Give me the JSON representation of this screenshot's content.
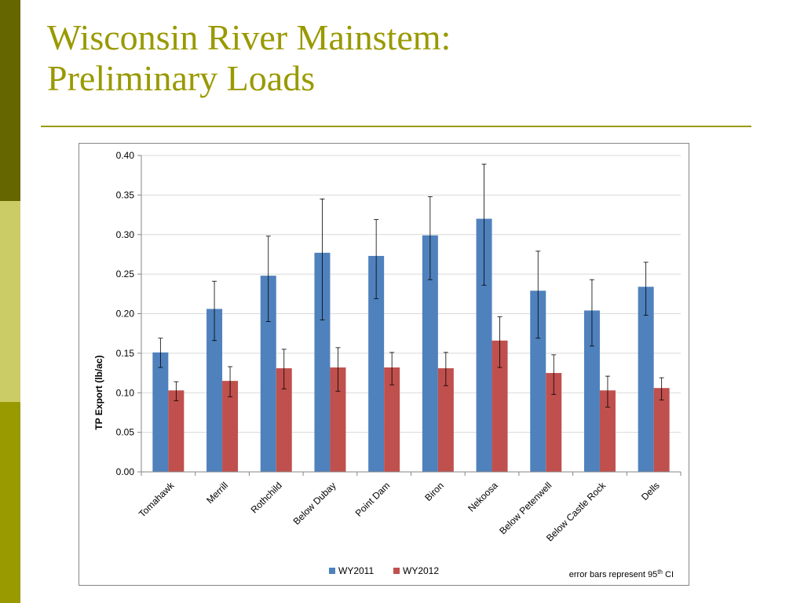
{
  "slide": {
    "title_line1": "Wisconsin River Mainstem:",
    "title_line2": "Preliminary Loads"
  },
  "colors": {
    "accent": "#999900",
    "series_wy2011": "#4f81bd",
    "series_wy2012": "#c0504d"
  },
  "chart_data": {
    "type": "bar",
    "title": "",
    "xlabel": "",
    "ylabel": "TP Export (lb/ac)",
    "ylim": [
      0,
      0.4
    ],
    "yticks": [
      "0.00",
      "0.05",
      "0.10",
      "0.15",
      "0.20",
      "0.25",
      "0.30",
      "0.35",
      "0.40"
    ],
    "grid": true,
    "legend_position": "bottom",
    "categories": [
      "Tomahawk",
      "Merrill",
      "Rothchild",
      "Below Dubay",
      "Point Dam",
      "Biron",
      "Nekoosa",
      "Below Petenwell",
      "Below Castle Rock",
      "Dells"
    ],
    "series": [
      {
        "name": "WY2011",
        "values": [
          0.151,
          0.206,
          0.248,
          0.277,
          0.273,
          0.299,
          0.32,
          0.229,
          0.204,
          0.234
        ],
        "ci_low": [
          0.132,
          0.166,
          0.19,
          0.192,
          0.219,
          0.243,
          0.236,
          0.169,
          0.159,
          0.198
        ],
        "ci_high": [
          0.169,
          0.241,
          0.298,
          0.345,
          0.319,
          0.348,
          0.389,
          0.279,
          0.243,
          0.265
        ]
      },
      {
        "name": "WY2012",
        "values": [
          0.103,
          0.115,
          0.131,
          0.132,
          0.132,
          0.131,
          0.166,
          0.125,
          0.103,
          0.106
        ],
        "ci_low": [
          0.09,
          0.095,
          0.105,
          0.102,
          0.11,
          0.109,
          0.132,
          0.098,
          0.082,
          0.091
        ],
        "ci_high": [
          0.114,
          0.133,
          0.155,
          0.157,
          0.151,
          0.151,
          0.196,
          0.148,
          0.121,
          0.119
        ]
      }
    ],
    "note": {
      "text": "error bars represent 95",
      "superscript": "th",
      "suffix": " CI"
    }
  }
}
